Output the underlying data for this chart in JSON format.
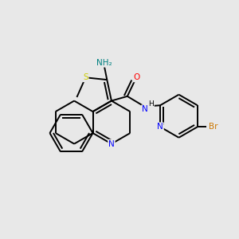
{
  "background_color": "#e8e8e8",
  "atom_colors": {
    "N": "#0000ff",
    "S": "#cccc00",
    "O": "#ff0000",
    "Br": "#cc7700",
    "NH2": "#008080",
    "C": "#000000"
  },
  "bond_color": "#000000",
  "lw": 1.4,
  "dbl_off": 0.055
}
